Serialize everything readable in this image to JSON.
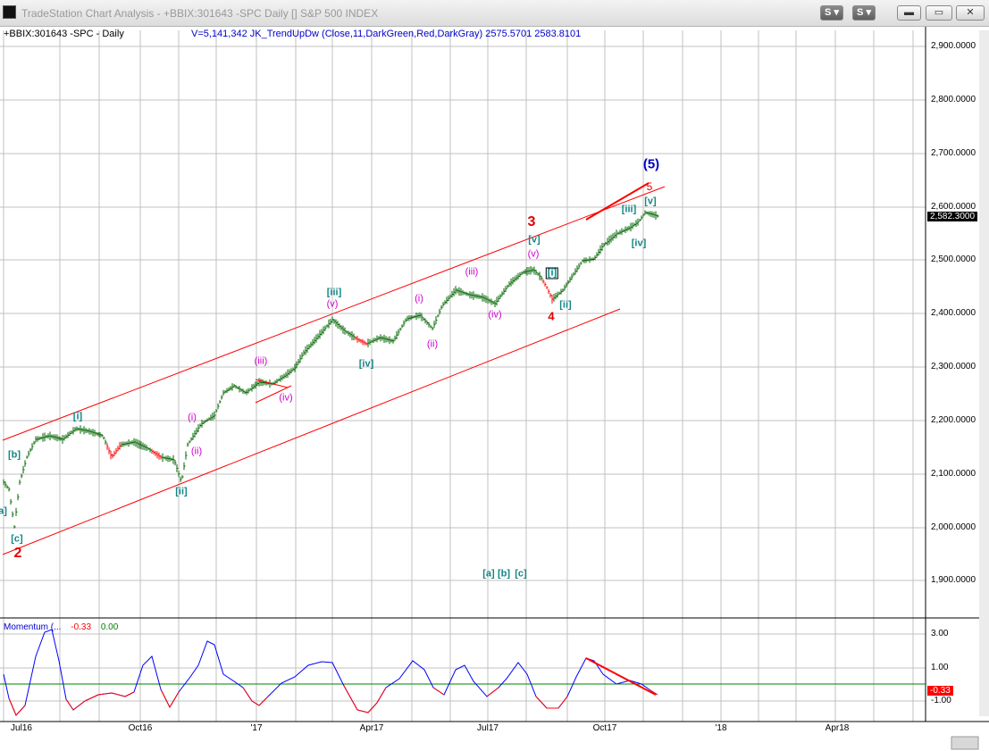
{
  "window": {
    "title": "TradeStation Chart Analysis - +BBIX:301643 -SPC Daily [] S&P 500 INDEX",
    "buttons": [
      "S",
      "S"
    ]
  },
  "header": {
    "symbol": "+BBIX:301643 -SPC - Daily",
    "indicator": "V=5,141,342  JK_TrendUpDw  (Close,11,DarkGreen,Red,DarkGray)  2575.5701  2583.8101"
  },
  "price_axis": {
    "labels": [
      "2,900.0000",
      "2,800.0000",
      "2,700.0000",
      "2,600.0000",
      "2,500.0000",
      "2,400.0000",
      "2,300.0000",
      "2,200.0000",
      "2,100.0000",
      "2,000.0000",
      "1,900.0000"
    ],
    "last_price": "2,582.3000",
    "colors": {
      "last_bg": "#000000",
      "last_text": "#ffffff"
    }
  },
  "momentum": {
    "label": "Momentum (...",
    "value1": "-0.33",
    "value2": "0.00",
    "axis_labels": [
      "3.00",
      "1.00",
      "-1.00"
    ],
    "last_value": "-0.33",
    "colors": {
      "last_bg": "#ff0000",
      "last_text": "#ffffff",
      "line_blue": "#0000ff",
      "line_red": "#ff0000",
      "zero": "#008000"
    }
  },
  "time_axis": {
    "labels": [
      "Jul16",
      "Oct16",
      "'17",
      "Apr17",
      "Jul17",
      "Oct17",
      "'18",
      "Apr18"
    ]
  },
  "waves": {
    "a_left": "a]",
    "b_left": "[b]",
    "c_left": "[c]",
    "two": "2",
    "i_major": "[i]",
    "ii_major": "[ii]",
    "i_minor1": "(i)",
    "ii_minor1": "(ii)",
    "iii_minor1": "(iii)",
    "iv_minor1": "(iv)",
    "v_minor1": "(v)",
    "iii_major": "[iii]",
    "iv_major": "[iv]",
    "i_minor2": "(i)",
    "ii_minor2": "(ii)",
    "iii_minor2": "(iii)",
    "iv_minor2": "(iv)",
    "v_minor2": "(v)",
    "v_major": "[v]",
    "three": "3",
    "four": "4",
    "i_after4": "[i]",
    "ii_after4": "[ii]",
    "iii_late": "[iii]",
    "iv_late": "[iv]",
    "v_late": "[v]",
    "five_red": "5",
    "five_blue": "(5)",
    "abc_a": "[a]",
    "abc_b": "[b]",
    "abc_c": "[c]"
  },
  "colors": {
    "grid": "#c0c0c0",
    "channel": "#ff0000",
    "bars": "#006400",
    "bars_down": "#ff0000"
  }
}
